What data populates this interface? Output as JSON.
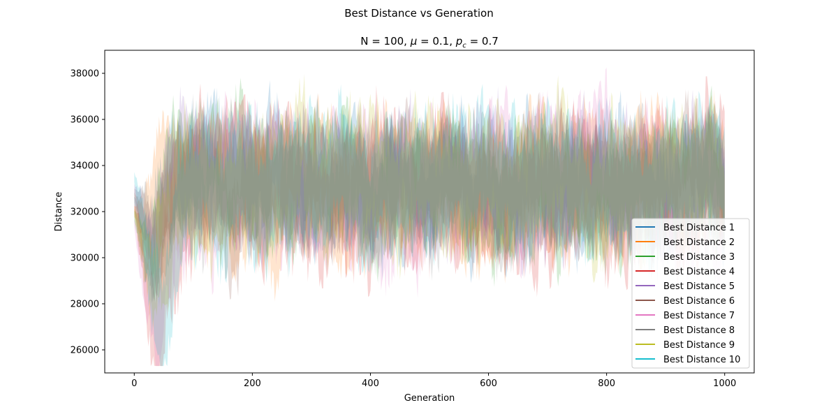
{
  "figure": {
    "suptitle": "Best Distance vs Generation"
  },
  "chart_data": {
    "type": "area",
    "title": "N = 100, μ = 0.1, p_c = 0.7",
    "title_parts": {
      "prefix": "N = 100, ",
      "mu_symbol": "μ",
      "mu_rest": " = 0.1, ",
      "p_symbol": "p",
      "p_subscript": "c",
      "p_rest": " = 0.7"
    },
    "xlabel": "Generation",
    "ylabel": "Distance",
    "xlim": [
      -50,
      1050
    ],
    "ylim": [
      25000,
      39000
    ],
    "xticks": [
      0,
      200,
      400,
      600,
      800,
      1000
    ],
    "yticks": [
      26000,
      28000,
      30000,
      32000,
      34000,
      36000,
      38000
    ],
    "grid": false,
    "legend_position": "lower right",
    "generations": [
      0,
      1000
    ],
    "series": [
      {
        "name": "Best Distance 1",
        "color": "#1f77b4",
        "start": 32500,
        "dip_min": 29800,
        "dip_at": 20,
        "mean": 33200,
        "spread": 2200
      },
      {
        "name": "Best Distance 2",
        "color": "#ff7f0e",
        "start": 32000,
        "dip_min": 31500,
        "dip_at": 15,
        "mean": 33300,
        "spread": 2300
      },
      {
        "name": "Best Distance 3",
        "color": "#2ca02c",
        "start": 31800,
        "dip_min": 29500,
        "dip_at": 25,
        "mean": 33100,
        "spread": 2200
      },
      {
        "name": "Best Distance 4",
        "color": "#d62728",
        "start": 32200,
        "dip_min": 25800,
        "dip_at": 42,
        "mean": 33000,
        "spread": 2600
      },
      {
        "name": "Best Distance 5",
        "color": "#9467bd",
        "start": 33000,
        "dip_min": 30500,
        "dip_at": 30,
        "mean": 33300,
        "spread": 2100
      },
      {
        "name": "Best Distance 6",
        "color": "#8c564b",
        "start": 32600,
        "dip_min": 30800,
        "dip_at": 35,
        "mean": 33200,
        "spread": 2000
      },
      {
        "name": "Best Distance 7",
        "color": "#e377c2",
        "start": 31500,
        "dip_min": 26300,
        "dip_at": 38,
        "mean": 33000,
        "spread": 2500
      },
      {
        "name": "Best Distance 8",
        "color": "#7f7f7f",
        "start": 32800,
        "dip_min": 30200,
        "dip_at": 28,
        "mean": 33100,
        "spread": 2000
      },
      {
        "name": "Best Distance 9",
        "color": "#bcbd22",
        "start": 32000,
        "dip_min": 28500,
        "dip_at": 32,
        "mean": 33200,
        "spread": 2300
      },
      {
        "name": "Best Distance 10",
        "color": "#17becf",
        "start": 33500,
        "dip_min": 27000,
        "dip_at": 45,
        "mean": 33300,
        "spread": 2400
      }
    ]
  }
}
